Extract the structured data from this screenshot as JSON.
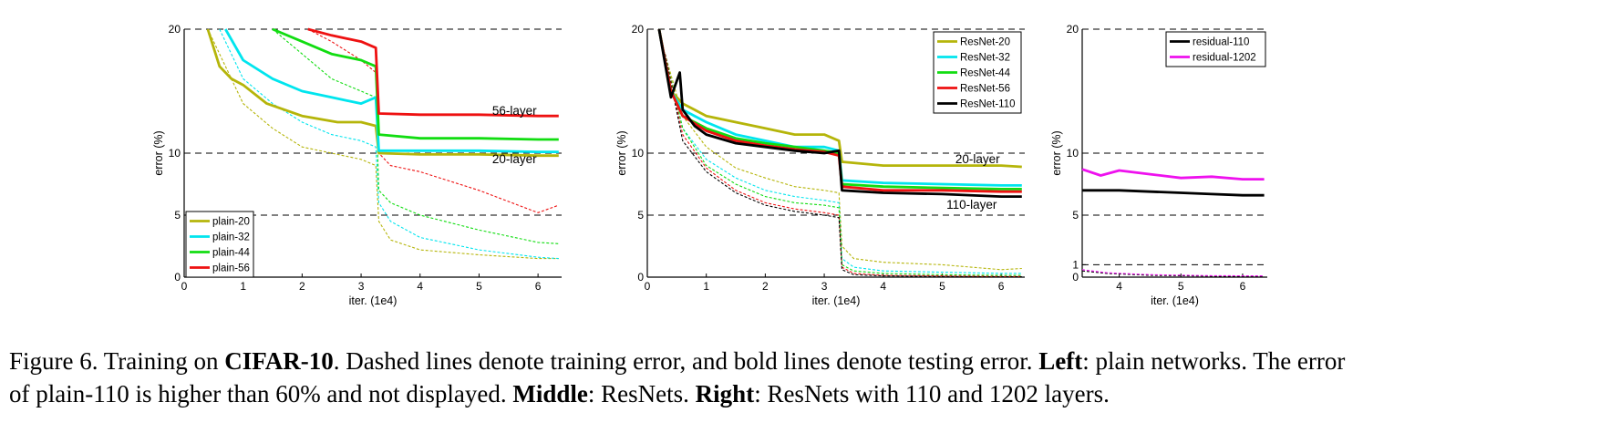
{
  "chart_data": [
    {
      "type": "line",
      "xlabel": "iter. (1e4)",
      "ylabel": "error (%)",
      "xlim": [
        0,
        6.4
      ],
      "ylim": [
        0,
        20
      ],
      "y_scale": "piecewise (0, 5, 10, 20 equally spaced)",
      "xticks": [
        "0",
        "1",
        "2",
        "3",
        "4",
        "5",
        "6"
      ],
      "yticks": [
        "0",
        "5",
        "10",
        "20"
      ],
      "dashed_gridlines_at": [
        5,
        10,
        20
      ],
      "legend_position": "lower-left",
      "annotations": [
        {
          "text": "56-layer",
          "x": 5.6,
          "y": 13.1
        },
        {
          "text": "20-layer",
          "x": 5.6,
          "y": 9.2
        }
      ],
      "series": [
        {
          "name": "plain-20",
          "color": "#b5b50a",
          "test": {
            "x": [
              0.4,
              0.6,
              0.8,
              1.0,
              1.4,
              2.0,
              2.6,
              3.0,
              3.25,
              3.3,
              4,
              5,
              6,
              6.35
            ],
            "y": [
              20,
              17,
              16,
              15.5,
              14,
              13,
              12.5,
              12.5,
              12.2,
              10,
              9.9,
              9.9,
              9.8,
              9.8
            ]
          },
          "train": {
            "x": [
              0.4,
              1.0,
              1.5,
              2.0,
              2.5,
              3.0,
              3.25,
              3.3,
              3.5,
              4,
              5,
              6,
              6.35
            ],
            "y": [
              20,
              14,
              12,
              10.5,
              10,
              9.5,
              9,
              4.5,
              3,
              2.2,
              1.8,
              1.5,
              1.5
            ]
          }
        },
        {
          "name": "plain-32",
          "color": "#00e5ee",
          "test": {
            "x": [
              0.7,
              1.0,
              1.5,
              2.0,
              2.5,
              3.0,
              3.25,
              3.3,
              4,
              5,
              6,
              6.35
            ],
            "y": [
              20,
              17.5,
              16,
              15,
              14.5,
              14,
              14.5,
              10.2,
              10.2,
              10.2,
              10.1,
              10.1
            ]
          },
          "train": {
            "x": [
              0.6,
              1.0,
              1.5,
              2.0,
              2.5,
              3.0,
              3.25,
              3.3,
              3.5,
              4,
              5,
              6,
              6.35
            ],
            "y": [
              20,
              16,
              14,
              12.5,
              11.5,
              11,
              10.5,
              6,
              4.5,
              3.2,
              2.2,
              1.6,
              1.5
            ]
          }
        },
        {
          "name": "plain-44",
          "color": "#11dd11",
          "test": {
            "x": [
              1.5,
              2.0,
              2.5,
              3.0,
              3.25,
              3.3,
              4,
              5,
              6,
              6.35
            ],
            "y": [
              20,
              19,
              18,
              17.5,
              17,
              11.5,
              11.2,
              11.2,
              11.1,
              11.1
            ]
          },
          "train": {
            "x": [
              1.5,
              2.0,
              2.5,
              3.0,
              3.25,
              3.3,
              3.5,
              4,
              5,
              6,
              6.35
            ],
            "y": [
              20,
              18,
              16,
              15,
              14.5,
              7,
              6,
              5,
              3.8,
              2.8,
              2.7
            ]
          }
        },
        {
          "name": "plain-56",
          "color": "#ee1111",
          "test": {
            "x": [
              2.1,
              2.5,
              3.0,
              3.25,
              3.3,
              4,
              5,
              6,
              6.35
            ],
            "y": [
              20,
              19.5,
              19,
              18.5,
              13.2,
              13.1,
              13.1,
              13.0,
              13.0
            ]
          },
          "train": {
            "x": [
              2.1,
              2.5,
              3.0,
              3.25,
              3.3,
              3.5,
              4,
              5,
              6,
              6.35
            ],
            "y": [
              20,
              19,
              17.5,
              16.5,
              10,
              9,
              8.5,
              7,
              5.2,
              5.8
            ]
          }
        }
      ]
    },
    {
      "type": "line",
      "xlabel": "iter. (1e4)",
      "ylabel": "error (%)",
      "xlim": [
        0,
        6.4
      ],
      "ylim": [
        0,
        20
      ],
      "y_scale": "piecewise (0, 5, 10, 20 equally spaced)",
      "xticks": [
        "0",
        "1",
        "2",
        "3",
        "4",
        "5",
        "6"
      ],
      "yticks": [
        "0",
        "5",
        "10",
        "20"
      ],
      "dashed_gridlines_at": [
        5,
        10,
        20
      ],
      "legend_position": "top-right",
      "annotations": [
        {
          "text": "20-layer",
          "x": 5.6,
          "y": 9.2
        },
        {
          "text": "110-layer",
          "x": 5.5,
          "y": 5.5
        }
      ],
      "series": [
        {
          "name": "ResNet-20",
          "color": "#b5b50a",
          "test": {
            "x": [
              0.2,
              0.4,
              0.6,
              0.8,
              1.0,
              1.5,
              2.0,
              2.5,
              3.0,
              3.25,
              3.3,
              4,
              5,
              6,
              6.35
            ],
            "y": [
              20,
              15,
              14,
              13.5,
              13,
              12.5,
              12,
              11.5,
              11.5,
              11,
              9.3,
              9.0,
              9.0,
              9.0,
              8.9
            ]
          },
          "train": {
            "x": [
              0.3,
              0.6,
              1.0,
              1.5,
              2.0,
              2.5,
              3.0,
              3.25,
              3.3,
              3.5,
              4,
              5,
              6,
              6.35
            ],
            "y": [
              18,
              13,
              10.5,
              8.8,
              8,
              7.3,
              7,
              6.8,
              2.5,
              1.5,
              1.2,
              1.0,
              0.6,
              0.7
            ]
          }
        },
        {
          "name": "ResNet-32",
          "color": "#00e5ee",
          "test": {
            "x": [
              0.2,
              0.4,
              0.6,
              1.0,
              1.5,
              2.0,
              2.5,
              3.0,
              3.25,
              3.3,
              4,
              5,
              6,
              6.35
            ],
            "y": [
              20,
              15,
              13.5,
              12.5,
              11.5,
              11,
              10.5,
              10.5,
              10.2,
              7.8,
              7.6,
              7.5,
              7.4,
              7.4
            ]
          },
          "train": {
            "x": [
              0.3,
              0.6,
              1.0,
              1.5,
              2.0,
              2.5,
              3.0,
              3.25,
              3.3,
              3.5,
              4,
              5,
              6,
              6.35
            ],
            "y": [
              18,
              12,
              9.5,
              8,
              7,
              6.5,
              6.2,
              6.0,
              1.5,
              0.8,
              0.5,
              0.4,
              0.3,
              0.3
            ]
          }
        },
        {
          "name": "ResNet-44",
          "color": "#11dd11",
          "test": {
            "x": [
              0.2,
              0.4,
              0.6,
              1.0,
              1.5,
              2.0,
              2.5,
              3.0,
              3.25,
              3.3,
              4,
              5,
              6,
              6.35
            ],
            "y": [
              20,
              15,
              13,
              12,
              11.2,
              10.8,
              10.5,
              10.2,
              10.0,
              7.5,
              7.3,
              7.2,
              7.1,
              7.1
            ]
          },
          "train": {
            "x": [
              0.3,
              0.6,
              1.0,
              1.5,
              2.0,
              2.5,
              3.0,
              3.25,
              3.3,
              3.5,
              4,
              5,
              6,
              6.35
            ],
            "y": [
              18,
              12,
              9,
              7.5,
              6.5,
              6,
              5.8,
              5.6,
              1.0,
              0.5,
              0.3,
              0.2,
              0.15,
              0.15
            ]
          }
        },
        {
          "name": "ResNet-56",
          "color": "#ee1111",
          "test": {
            "x": [
              0.2,
              0.4,
              0.6,
              1.0,
              1.5,
              2.0,
              2.5,
              3.0,
              3.25,
              3.3,
              4,
              5,
              6,
              6.35
            ],
            "y": [
              20,
              15,
              13,
              11.8,
              11,
              10.6,
              10.3,
              10.1,
              9.8,
              7.3,
              7.0,
              7.0,
              6.9,
              6.9
            ]
          },
          "train": {
            "x": [
              0.3,
              0.6,
              1.0,
              1.5,
              2.0,
              2.5,
              3.0,
              3.25,
              3.3,
              3.5,
              4,
              5,
              6,
              6.35
            ],
            "y": [
              18,
              11.5,
              8.8,
              7,
              6,
              5.5,
              5.2,
              5.0,
              0.8,
              0.3,
              0.15,
              0.1,
              0.05,
              0.05
            ]
          }
        },
        {
          "name": "ResNet-110",
          "color": "#000000",
          "test": {
            "x": [
              0.2,
              0.4,
              0.55,
              0.6,
              0.8,
              1.0,
              1.5,
              2.0,
              2.5,
              3.0,
              3.25,
              3.3,
              4,
              5,
              6,
              6.35
            ],
            "y": [
              20,
              14.5,
              16.5,
              13.5,
              12.2,
              11.5,
              10.8,
              10.5,
              10.2,
              10.0,
              10.2,
              7.0,
              6.8,
              6.7,
              6.5,
              6.5
            ]
          },
          "train": {
            "x": [
              0.3,
              0.6,
              1.0,
              1.5,
              2.0,
              2.5,
              3.0,
              3.25,
              3.3,
              3.5,
              4,
              5,
              6,
              6.35
            ],
            "y": [
              18,
              11,
              8.5,
              6.8,
              5.8,
              5.3,
              5.0,
              4.8,
              0.6,
              0.2,
              0.1,
              0.05,
              0.03,
              0.03
            ]
          }
        }
      ]
    },
    {
      "type": "line",
      "xlabel": "iter. (1e4)",
      "ylabel": "error (%)",
      "xlim": [
        3.4,
        6.4
      ],
      "ylim": [
        0,
        20
      ],
      "y_scale": "piecewise (0, 1, 5, 10, 20)",
      "xticks": [
        "4",
        "5",
        "6"
      ],
      "yticks": [
        "0",
        "1",
        "5",
        "10",
        "20"
      ],
      "dashed_gridlines_at": [
        1,
        5,
        10,
        20
      ],
      "legend_position": "top-right",
      "series": [
        {
          "name": "residual-110",
          "color": "#000000",
          "test": {
            "x": [
              3.4,
              3.7,
              4.0,
              4.5,
              5.0,
              5.5,
              6.0,
              6.35
            ],
            "y": [
              7.0,
              7.0,
              7.0,
              6.9,
              6.8,
              6.7,
              6.6,
              6.6
            ]
          },
          "train": {
            "x": [
              3.4,
              3.8,
              4.5,
              5.5,
              6.35
            ],
            "y": [
              0.5,
              0.3,
              0.15,
              0.08,
              0.05
            ]
          }
        },
        {
          "name": "residual-1202",
          "color": "#ee11ee",
          "test": {
            "x": [
              3.4,
              3.7,
              4.0,
              4.5,
              5.0,
              5.5,
              6.0,
              6.35
            ],
            "y": [
              8.7,
              8.2,
              8.6,
              8.3,
              8.0,
              8.1,
              7.9,
              7.9
            ]
          },
          "train": {
            "x": [
              3.4,
              3.8,
              4.5,
              5.5,
              6.35
            ],
            "y": [
              0.6,
              0.35,
              0.2,
              0.12,
              0.1
            ]
          }
        }
      ]
    }
  ],
  "caption": {
    "line1": [
      {
        "text": "Figure 6. Training on ",
        "bold": false
      },
      {
        "text": "CIFAR-10",
        "bold": true
      },
      {
        "text": ". Dashed lines denote training error, and bold lines denote testing error. ",
        "bold": false
      },
      {
        "text": "Left",
        "bold": true
      },
      {
        "text": ": plain networks. The error",
        "bold": false
      }
    ],
    "line2": [
      {
        "text": "of plain-110 is higher than 60% and not displayed. ",
        "bold": false
      },
      {
        "text": "Middle",
        "bold": true
      },
      {
        "text": ": ResNets. ",
        "bold": false
      },
      {
        "text": "Right",
        "bold": true
      },
      {
        "text": ": ResNets with 110 and 1202 layers.",
        "bold": false
      }
    ]
  }
}
